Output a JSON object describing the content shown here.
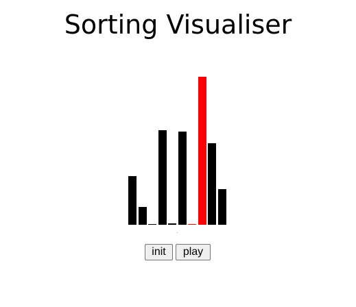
{
  "page": {
    "title": "Sorting Visualiser"
  },
  "visualiser": {
    "bar_colors": {
      "default": "#000000",
      "highlight": "#ff0000"
    },
    "max_value": 100,
    "bars": [
      {
        "value": 33,
        "highlighted": false
      },
      {
        "value": 12,
        "highlighted": false
      },
      {
        "value": 0.5,
        "highlighted": false
      },
      {
        "value": 64,
        "highlighted": false
      },
      {
        "value": 1,
        "highlighted": false
      },
      {
        "value": 63,
        "highlighted": false
      },
      {
        "value": 0.5,
        "highlighted": true
      },
      {
        "value": 100,
        "highlighted": true
      },
      {
        "value": 55,
        "highlighted": false
      },
      {
        "value": 24,
        "highlighted": false
      }
    ]
  },
  "controls": {
    "init_label": "init",
    "play_label": "play"
  }
}
